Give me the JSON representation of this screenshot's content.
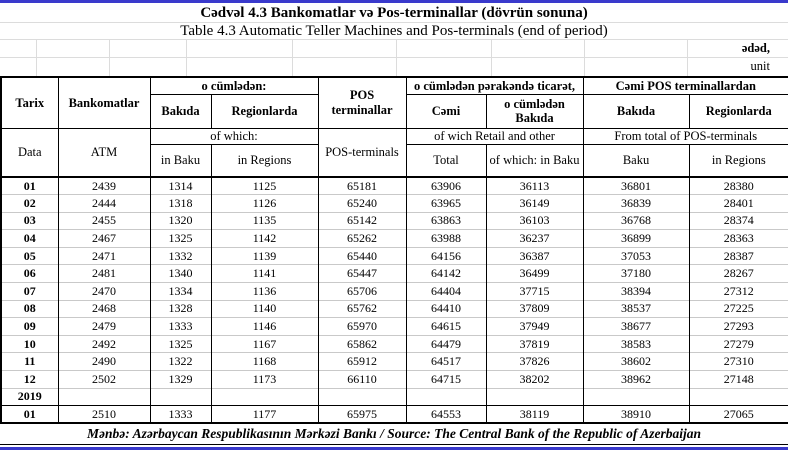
{
  "page": {
    "title_az": "Cədvəl 4.3 Bankomatlar və Pos-terminallar (dövrün sonuna)",
    "title_en": "Table 4.3 Automatic Teller Machines and Pos-terminals (end of period)",
    "unit_az": "ədəd,",
    "unit_en": "unit",
    "source": "Mənbə: Azərbaycan Respublikasının Mərkəzi Bankı / Source: The Central Bank of the Republic of Azerbaijan",
    "accent_color": "#3A3ACC"
  },
  "table": {
    "header": {
      "az": {
        "date": "Tarix",
        "atm": "Bankomatlar",
        "of_which": "o cümlədən:",
        "in_baku": "Bakıda",
        "in_regions": "Regionlarda",
        "pos": "POS terminallar",
        "retail": "o cümlədən pərakəndə ticarət,",
        "total": "Cəmi",
        "retail_baku": "o cümlədən Bakıda",
        "pos_total": "Cəmi POS terminallardan",
        "pos_baku": "Bakıda",
        "pos_regions": "Regionlarda"
      },
      "en": {
        "date": "Data",
        "atm": "ATM",
        "of_which": "of which:",
        "in_baku": "in Baku",
        "in_regions": "in Regions",
        "pos": "POS-terminals",
        "retail": "of wich Retail and other",
        "total": "Total",
        "retail_baku": "of which: in Baku",
        "pos_total": "From total of POS-terminals",
        "pos_baku": "Baku",
        "pos_regions": "in Regions"
      }
    },
    "rows": [
      {
        "date": "01",
        "values": [
          "2439",
          "1314",
          "1125",
          "65181",
          "63906",
          "36113",
          "36801",
          "28380"
        ]
      },
      {
        "date": "02",
        "values": [
          "2444",
          "1318",
          "1126",
          "65240",
          "63965",
          "36149",
          "36839",
          "28401"
        ]
      },
      {
        "date": "03",
        "values": [
          "2455",
          "1320",
          "1135",
          "65142",
          "63863",
          "36103",
          "36768",
          "28374"
        ]
      },
      {
        "date": "04",
        "values": [
          "2467",
          "1325",
          "1142",
          "65262",
          "63988",
          "36237",
          "36899",
          "28363"
        ]
      },
      {
        "date": "05",
        "values": [
          "2471",
          "1332",
          "1139",
          "65440",
          "64156",
          "36387",
          "37053",
          "28387"
        ]
      },
      {
        "date": "06",
        "values": [
          "2481",
          "1340",
          "1141",
          "65447",
          "64142",
          "36499",
          "37180",
          "28267"
        ]
      },
      {
        "date": "07",
        "values": [
          "2470",
          "1334",
          "1136",
          "65706",
          "64404",
          "37715",
          "38394",
          "27312"
        ]
      },
      {
        "date": "08",
        "values": [
          "2468",
          "1328",
          "1140",
          "65762",
          "64410",
          "37809",
          "38537",
          "27225"
        ]
      },
      {
        "date": "09",
        "values": [
          "2479",
          "1333",
          "1146",
          "65970",
          "64615",
          "37949",
          "38677",
          "27293"
        ]
      },
      {
        "date": "10",
        "values": [
          "2492",
          "1325",
          "1167",
          "65862",
          "64479",
          "37819",
          "38583",
          "27279"
        ]
      },
      {
        "date": "11",
        "values": [
          "2490",
          "1322",
          "1168",
          "65912",
          "64517",
          "37826",
          "38602",
          "27310"
        ]
      },
      {
        "date": "12",
        "values": [
          "2502",
          "1329",
          "1173",
          "66110",
          "64715",
          "38202",
          "38962",
          "27148"
        ]
      },
      {
        "date": "2019",
        "values": [
          "",
          "",
          "",
          "",
          "",
          "",
          "",
          ""
        ]
      },
      {
        "date": "01",
        "values": [
          "2510",
          "1333",
          "1177",
          "65975",
          "64553",
          "38119",
          "38910",
          "27065"
        ],
        "divider": true
      }
    ]
  }
}
